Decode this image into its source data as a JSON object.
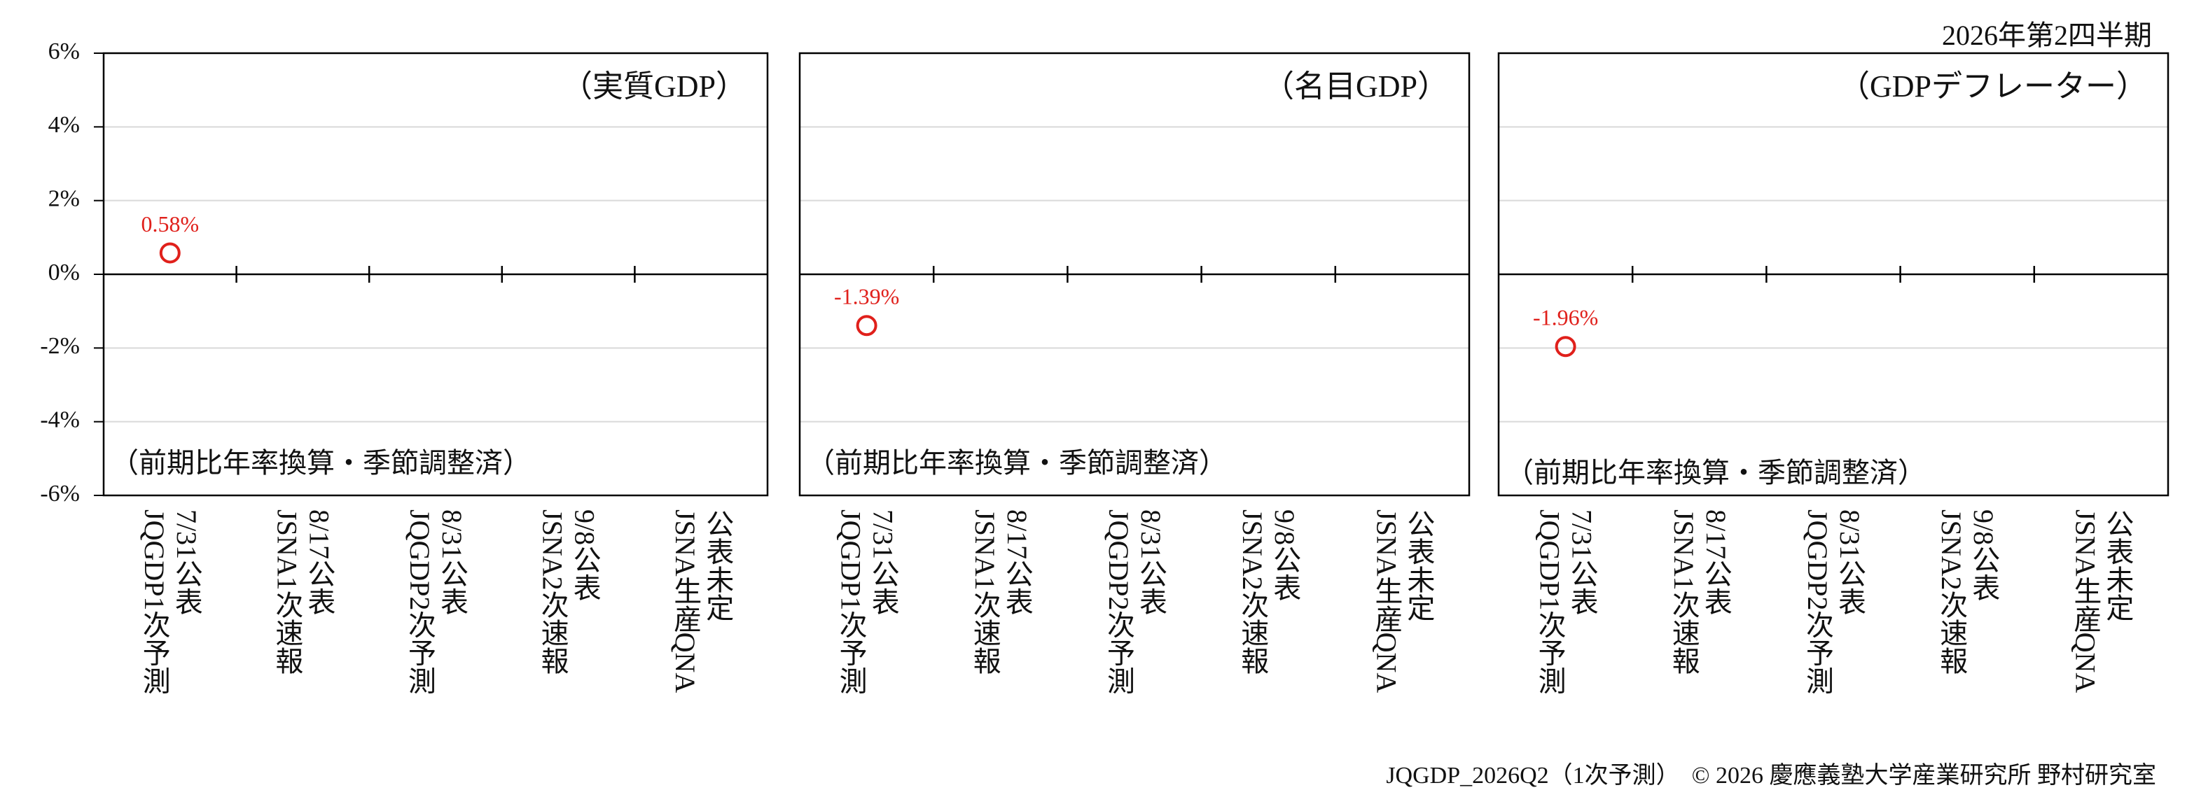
{
  "period_label": "2026年第2四半期",
  "footer": "JQGDP_2026Q2（1次予測）　© 2026 慶應義塾大学産業研究所 野村研究室",
  "chart_data": [
    {
      "type": "scatter",
      "title": "（実質GDP）",
      "note": "（前期比年率換算・季節調整済）",
      "categories": [
        [
          "7/31公表",
          "JQGDP1次予測"
        ],
        [
          "8/17公表",
          "JSNA1次速報"
        ],
        [
          "8/31公表",
          "JQGDP2次予測"
        ],
        [
          "9/8公表",
          "JSNA2次速報"
        ],
        [
          "公表未定",
          "JSNA生産QNA"
        ]
      ],
      "values": [
        0.58,
        null,
        null,
        null,
        null
      ],
      "value_labels": [
        "0.58%",
        null,
        null,
        null,
        null
      ],
      "color": "#e0201b",
      "ylim": [
        -6,
        6
      ],
      "yticks": [
        {
          "value": -6,
          "label": "-6%"
        },
        {
          "value": -4,
          "label": "-4%"
        },
        {
          "value": -2,
          "label": "-2%"
        },
        {
          "value": 0,
          "label": "0%"
        },
        {
          "value": 2,
          "label": "2%"
        },
        {
          "value": 4,
          "label": "4%"
        },
        {
          "value": 6,
          "label": "6%"
        }
      ],
      "grid": true
    },
    {
      "type": "scatter",
      "title": "（名目GDP）",
      "note": "（前期比年率換算・季節調整済）",
      "categories": [
        [
          "7/31公表",
          "JQGDP1次予測"
        ],
        [
          "8/17公表",
          "JSNA1次速報"
        ],
        [
          "8/31公表",
          "JQGDP2次予測"
        ],
        [
          "9/8公表",
          "JSNA2次速報"
        ],
        [
          "公表未定",
          "JSNA生産QNA"
        ]
      ],
      "values": [
        -1.39,
        null,
        null,
        null,
        null
      ],
      "value_labels": [
        "-1.39%",
        null,
        null,
        null,
        null
      ],
      "color": "#e0201b",
      "ylim": [
        -6,
        6
      ],
      "grid": true
    },
    {
      "type": "scatter",
      "title": "（GDPデフレーター）",
      "note": "（前期比年率換算・季節調整済）",
      "categories": [
        [
          "7/31公表",
          "JQGDP1次予測"
        ],
        [
          "8/17公表",
          "JSNA1次速報"
        ],
        [
          "8/31公表",
          "JQGDP2次予測"
        ],
        [
          "9/8公表",
          "JSNA2次速報"
        ],
        [
          "公表未定",
          "JSNA生産QNA"
        ]
      ],
      "values": [
        -1.96,
        null,
        null,
        null,
        null
      ],
      "value_labels": [
        "-1.96%",
        null,
        null,
        null,
        null
      ],
      "color": "#e0201b",
      "ylim": [
        -6,
        6
      ],
      "grid": true
    }
  ]
}
